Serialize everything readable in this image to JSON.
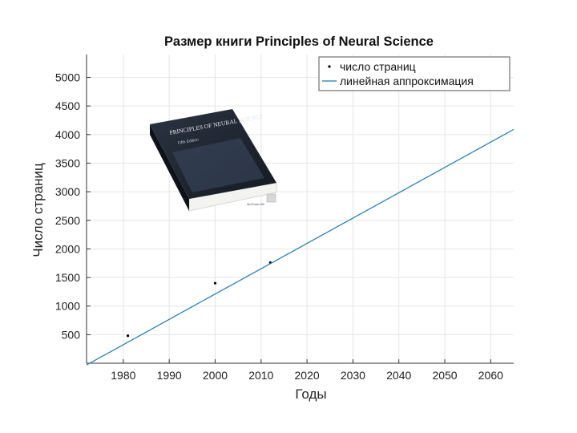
{
  "chart_data": {
    "type": "scatter",
    "title": "Размер книги Principles of Neural Science",
    "xlabel": "Годы",
    "ylabel": "Число страниц",
    "xlim": [
      1972,
      2065
    ],
    "ylim": [
      0,
      5400
    ],
    "xticks": [
      1980,
      1990,
      2000,
      2010,
      2020,
      2030,
      2040,
      2050,
      2060
    ],
    "yticks": [
      500,
      1000,
      1500,
      2000,
      2500,
      3000,
      3500,
      4000,
      4500,
      5000
    ],
    "grid": true,
    "legend_position": "top-right",
    "series": [
      {
        "name": "число страниц",
        "kind": "points",
        "color": "#000000",
        "x": [
          1981,
          2000,
          2012
        ],
        "y": [
          480,
          1400,
          1760
        ]
      },
      {
        "name": "линейная аппроксимация",
        "kind": "line",
        "color": "#1f77b4",
        "x": [
          1972,
          2065
        ],
        "y": [
          -30,
          4090
        ]
      }
    ]
  },
  "book": {
    "cover_title": "PRINCIPLES OF NEURAL SCIENCE",
    "cover_edition": "Fifth Edition",
    "publisher": "McGraw-Hill"
  }
}
